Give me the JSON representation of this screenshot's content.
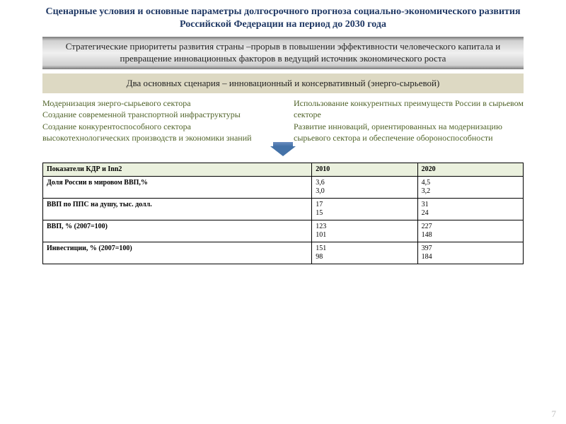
{
  "title": "Сценарные условия  и основные параметры долгосрочного прогноза социально-экономического развития Российской Федерации на период до 2030 года",
  "banner1": "Стратегические приоритеты развития страны –прорыв в повышении эффективности человеческого капитала и превращение инновационных факторов  в ведущий источник экономического роста",
  "banner2": "Два основных сценария – инновационный и консервативный (энерго-сырьевой)",
  "leftCol": "Модернизация энерго-сырьевого сектора\nСоздание современной транспортной инфраструктуры\nСоздание конкурентоспособного сектора высокотехнологических производств и экономики знаний",
  "rightCol": "Использование конкурентных преимуществ России в сырьевом секторе\nРазвитие инноваций, ориентированных на модернизацию сырьевого сектора и обеспечение обороноспособности",
  "table": {
    "header_bg": "#ebf1de",
    "columns": [
      "Показатели    КДР и Inn2",
      "2010",
      "2020"
    ],
    "rows": [
      {
        "indicator": "Доля России в мировом ВВП,%",
        "v2010": [
          "3,6",
          "3,0"
        ],
        "v2020": [
          "4,5",
          "3,2"
        ]
      },
      {
        "indicator": "ВВП по ППС на душу, тыс. долл.",
        "v2010": [
          "17",
          "15"
        ],
        "v2020": [
          "31",
          "24"
        ]
      },
      {
        "indicator": "ВВП, % (2007=100)",
        "v2010": [
          "123",
          "101"
        ],
        "v2020": [
          "227",
          "148"
        ]
      },
      {
        "indicator": "Инвестиции, % (2007=100)",
        "v2010": [
          "151",
          "98"
        ],
        "v2020": [
          "397",
          "184"
        ]
      }
    ]
  },
  "pageNumber": "7",
  "colors": {
    "title": "#1f3864",
    "bodyText": "#4f6228",
    "arrow": "#4472a8",
    "oliveBanner": "#ddd9c3",
    "pageNum": "#bfbfbf"
  }
}
